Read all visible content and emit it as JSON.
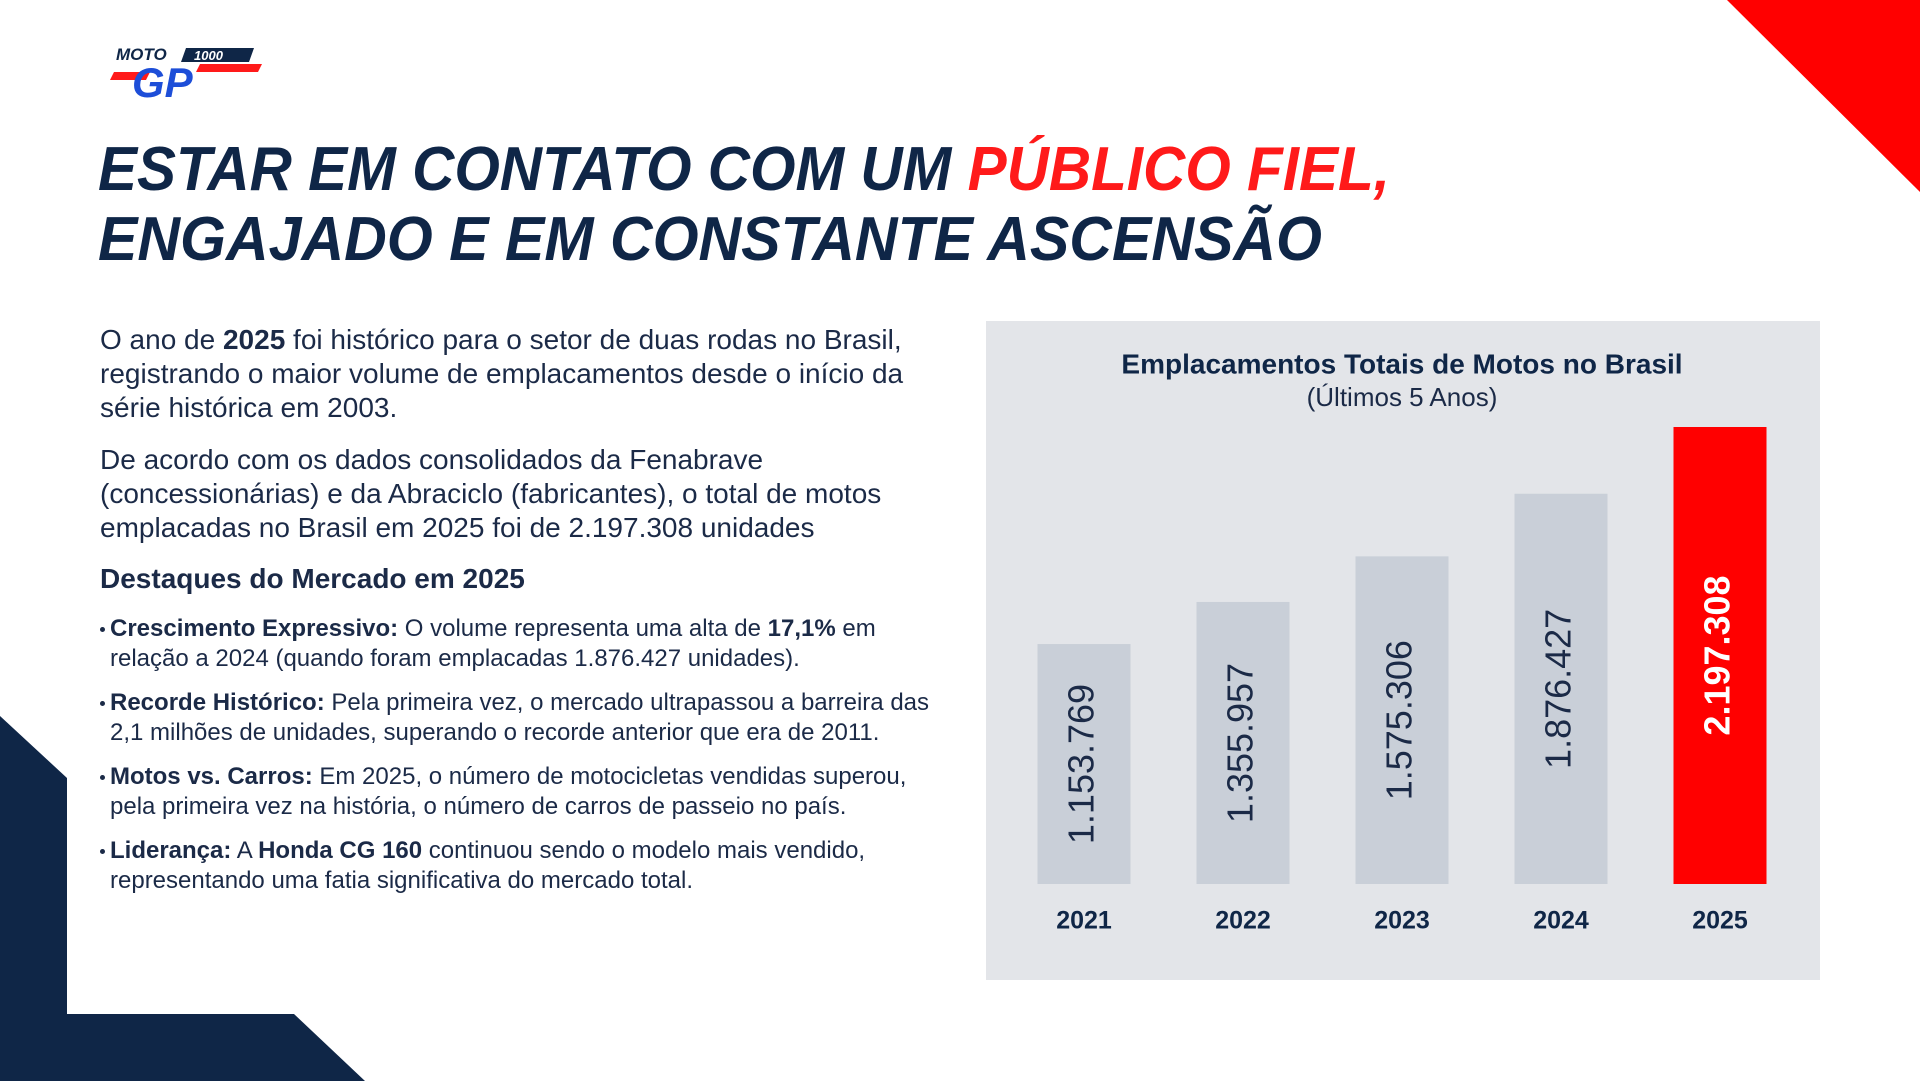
{
  "logo": {
    "top": "MOTO",
    "number": "1000",
    "main": "GP"
  },
  "title": {
    "line1_start": "ESTAR EM CONTATO COM UM ",
    "line1_highlight": "PÚBLICO FIEL,",
    "line2": "ENGAJADO E EM CONSTANTE ASCENSÃO"
  },
  "paragraphs": [
    [
      {
        "text": "O ano de "
      },
      {
        "text": "2025",
        "bold": true
      },
      {
        "text": " foi histórico para o setor de duas rodas no Brasil, registrando o maior volume de emplacamentos desde o início da série histórica em 2003."
      }
    ],
    [
      {
        "text": "De acordo com os dados consolidados da Fenabrave (concessionárias) e da Abraciclo (fabricantes), o total de motos emplacadas no Brasil em 2025 foi de 2.197.308 unidades"
      }
    ]
  ],
  "highlights": {
    "heading": "Destaques do Mercado em 2025",
    "items": [
      [
        {
          "text": "Crescimento Expressivo:",
          "bold": true
        },
        {
          "text": " O volume representa uma alta de "
        },
        {
          "text": "17,1%",
          "bold": true
        },
        {
          "text": " em relação a 2024 (quando foram emplacadas 1.876.427 unidades)."
        }
      ],
      [
        {
          "text": "Recorde Histórico:",
          "bold": true
        },
        {
          "text": " Pela primeira vez, o mercado ultrapassou a barreira das 2,1 milhões de unidades, superando o recorde anterior que era de 2011."
        }
      ],
      [
        {
          "text": "Motos vs. Carros:",
          "bold": true
        },
        {
          "text": " Em 2025, o número de motocicletas vendidas superou, pela primeira vez na história, o número de carros de passeio no país."
        }
      ],
      [
        {
          "text": "Liderança:",
          "bold": true
        },
        {
          "text": " A "
        },
        {
          "text": "Honda CG 160",
          "bold": true
        },
        {
          "text": " continuou sendo o modelo mais vendido, representando uma fatia significativa do mercado total."
        }
      ]
    ]
  },
  "chart_data": {
    "type": "bar",
    "title": "Emplacamentos Totais de Motos no Brasil",
    "subtitle": "(Últimos 5 Anos)",
    "categories": [
      "2021",
      "2022",
      "2023",
      "2024",
      "2025"
    ],
    "values": [
      1153769,
      1355957,
      1575306,
      1876427,
      2197308
    ],
    "value_labels": [
      "1.153.769",
      "1.355.957",
      "1.575.306",
      "1.876.427",
      "2.197.308"
    ],
    "colors": [
      "#c9cfd8",
      "#c9cfd8",
      "#c9cfd8",
      "#c9cfd8",
      "#ff0000"
    ],
    "label_colors": [
      "#1b2a47",
      "#1b2a47",
      "#1b2a47",
      "#1b2a47",
      "#ffffff"
    ],
    "label_bold": [
      false,
      false,
      false,
      false,
      true
    ]
  }
}
